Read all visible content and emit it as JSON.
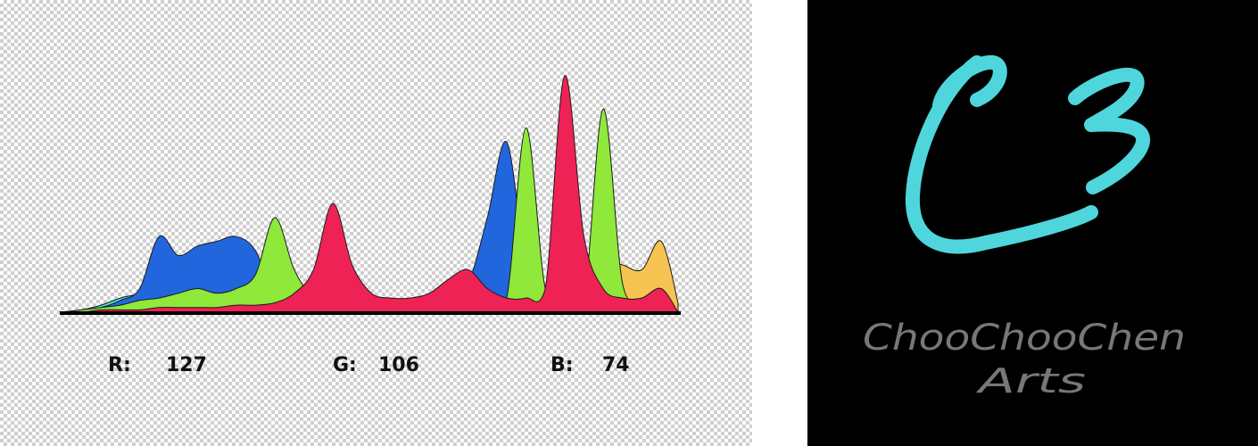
{
  "chart_data": {
    "type": "area",
    "title": "",
    "xlabel": "",
    "ylabel": "",
    "xlim": [
      0,
      255
    ],
    "ylim": [
      0,
      1
    ],
    "grid": false,
    "legend": "none",
    "x": [
      0,
      8,
      16,
      24,
      32,
      40,
      48,
      56,
      64,
      72,
      80,
      88,
      96,
      104,
      112,
      120,
      128,
      136,
      144,
      152,
      160,
      168,
      176,
      184,
      192,
      200,
      208,
      216,
      224,
      232,
      240,
      248,
      255
    ],
    "series": [
      {
        "color": "#cfcfcf",
        "values": [
          0.0,
          0.01,
          0.02,
          0.03,
          0.05,
          0.06,
          0.08,
          0.1,
          0.09,
          0.07,
          0.06,
          0.05,
          0.05,
          0.06,
          0.07,
          0.06,
          0.05,
          0.04,
          0.05,
          0.06,
          0.05,
          0.04,
          0.04,
          0.04,
          0.05,
          0.04,
          0.04,
          0.04,
          0.05,
          0.05,
          0.04,
          0.03,
          0.0
        ]
      },
      {
        "color": "#41e8d2",
        "values": [
          0.0,
          0.01,
          0.03,
          0.06,
          0.08,
          0.12,
          0.15,
          0.13,
          0.1,
          0.08,
          0.07,
          0.06,
          0.05,
          0.05,
          0.05,
          0.05,
          0.05,
          0.05,
          0.05,
          0.05,
          0.05,
          0.05,
          0.05,
          0.05,
          0.06,
          0.1,
          0.09,
          0.07,
          0.1,
          0.12,
          0.07,
          0.04,
          0.0
        ]
      },
      {
        "color": "#bb44ee",
        "values": [
          0.0,
          0.0,
          0.0,
          0.0,
          0.02,
          0.04,
          0.07,
          0.1,
          0.22,
          0.12,
          0.06,
          0.04,
          0.03,
          0.02,
          0.02,
          0.02,
          0.03,
          0.04,
          0.05,
          0.07,
          0.1,
          0.14,
          0.09,
          0.05,
          0.03,
          0.02,
          0.02,
          0.02,
          0.02,
          0.02,
          0.02,
          0.02,
          0.0
        ]
      },
      {
        "color": "#f6c451",
        "values": [
          0.0,
          0.0,
          0.0,
          0.0,
          0.0,
          0.0,
          0.0,
          0.02,
          0.04,
          0.06,
          0.08,
          0.1,
          0.1,
          0.09,
          0.08,
          0.07,
          0.06,
          0.05,
          0.04,
          0.04,
          0.03,
          0.03,
          0.03,
          0.05,
          0.08,
          0.1,
          0.12,
          0.18,
          0.22,
          0.2,
          0.18,
          0.3,
          0.04
        ]
      },
      {
        "color": "#2266dd",
        "values": [
          0.0,
          0.01,
          0.02,
          0.05,
          0.1,
          0.32,
          0.24,
          0.28,
          0.3,
          0.32,
          0.26,
          0.06,
          0.04,
          0.03,
          0.03,
          0.03,
          0.03,
          0.03,
          0.03,
          0.03,
          0.05,
          0.12,
          0.4,
          0.72,
          0.2,
          0.06,
          0.04,
          0.03,
          0.03,
          0.03,
          0.02,
          0.02,
          0.0
        ]
      },
      {
        "color": "#8fe83a",
        "values": [
          0.0,
          0.01,
          0.02,
          0.03,
          0.05,
          0.06,
          0.08,
          0.1,
          0.08,
          0.1,
          0.16,
          0.4,
          0.18,
          0.06,
          0.04,
          0.03,
          0.03,
          0.03,
          0.03,
          0.03,
          0.03,
          0.03,
          0.04,
          0.06,
          0.78,
          0.1,
          0.06,
          0.05,
          0.86,
          0.12,
          0.05,
          0.03,
          0.0
        ]
      },
      {
        "color": "#ee2255",
        "values": [
          0.0,
          0.0,
          0.01,
          0.01,
          0.01,
          0.02,
          0.02,
          0.02,
          0.02,
          0.03,
          0.03,
          0.04,
          0.08,
          0.18,
          0.46,
          0.2,
          0.08,
          0.06,
          0.06,
          0.08,
          0.14,
          0.18,
          0.1,
          0.06,
          0.06,
          0.1,
          1.0,
          0.32,
          0.1,
          0.06,
          0.06,
          0.1,
          0.0
        ]
      }
    ]
  },
  "readout": {
    "r_label": "R:",
    "r_value": "127",
    "g_label": "G:",
    "g_value": "106",
    "b_label": "B:",
    "b_value": "74"
  },
  "logo": {
    "monogram": "C3",
    "line1": "ChooChooChen",
    "line2": "Arts",
    "accent_color": "#4fd6dc",
    "text_color": "#777777"
  }
}
